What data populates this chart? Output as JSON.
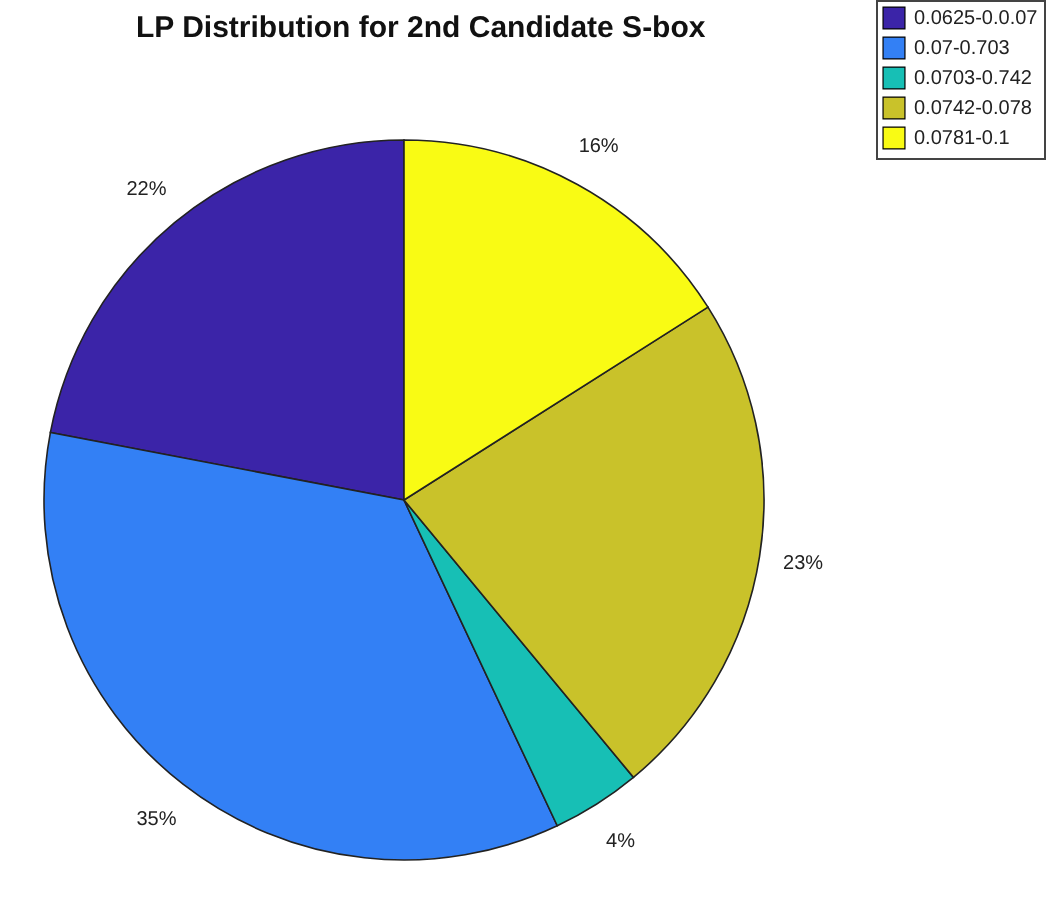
{
  "chart_data": {
    "type": "pie",
    "title": "LP Distribution for 2nd Candidate S-box",
    "categories": [
      "0.0625-0.0.07",
      "0.07-0.703",
      "0.0703-0.742",
      "0.0742-0.078",
      "0.0781-0.1"
    ],
    "values": [
      22,
      35,
      4,
      23,
      16
    ],
    "colors": [
      "#3b24a8",
      "#3380f5",
      "#17bfb5",
      "#c9c22a",
      "#f9fb14"
    ],
    "value_labels": [
      "22%",
      "35%",
      "4%",
      "23%",
      "16%"
    ],
    "legend": "top right"
  }
}
